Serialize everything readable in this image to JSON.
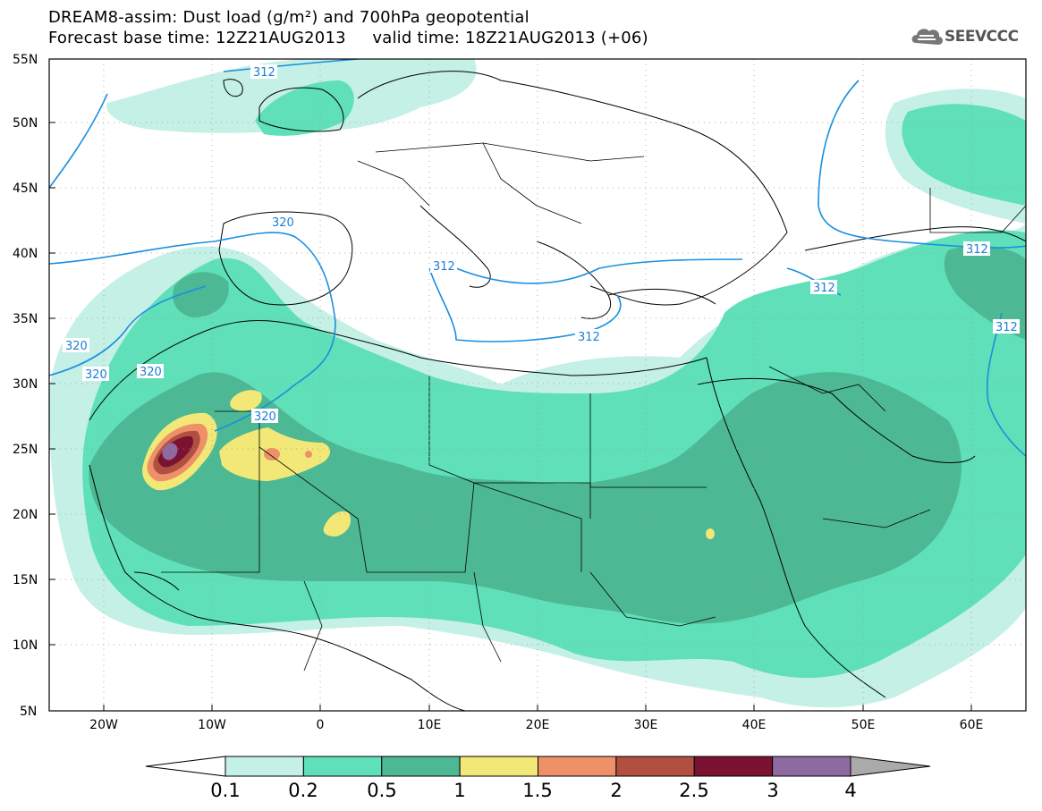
{
  "header": {
    "title_line1": "DREAM8-assim: Dust load (g/m²) and 700hPa geopotential",
    "title_line2": "Forecast base time: 12Z21AUG2013     valid time: 18Z21AUG2013 (+06)"
  },
  "logo": {
    "text": "SEEVCCC",
    "icon": "cloud-icon"
  },
  "map": {
    "lat_labels": [
      "55N",
      "50N",
      "45N",
      "40N",
      "35N",
      "30N",
      "25N",
      "20N",
      "15N",
      "10N",
      "5N"
    ],
    "lon_labels": [
      "20W",
      "10W",
      "0",
      "10E",
      "20E",
      "30E",
      "40E",
      "50E",
      "60E"
    ],
    "contour_labels": [
      "312",
      "312",
      "320",
      "312",
      "312",
      "312",
      "312",
      "320",
      "320",
      "320",
      "320"
    ],
    "colors": {
      "ocean_land": "#ffffff",
      "border": "#000000",
      "contour": "#1a8fe0"
    }
  },
  "colorbar": {
    "labels": [
      "0.1",
      "0.2",
      "0.5",
      "1",
      "1.5",
      "2",
      "2.5",
      "3",
      "4"
    ],
    "colors": [
      "#c4f0e6",
      "#5fe0b8",
      "#4db894",
      "#f2e878",
      "#ee9168",
      "#b05040",
      "#7a1232",
      "#8e6aa0",
      "#aaaaaa"
    ]
  }
}
